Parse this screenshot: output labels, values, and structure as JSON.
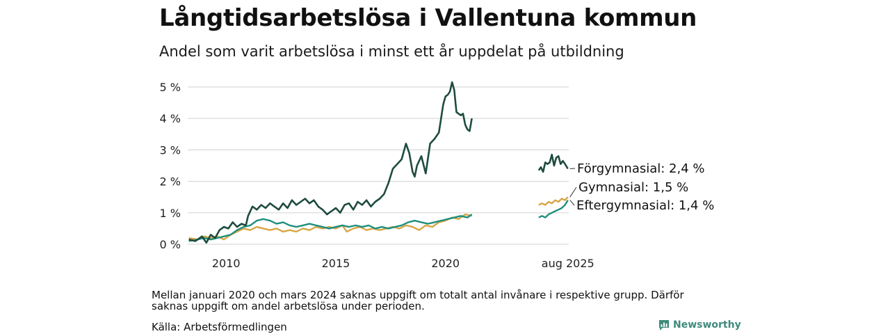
{
  "title": "Långtidsarbetslösa i Vallentuna kommun",
  "subtitle": "Andel som varit arbetslösa i minst ett år uppdelat på utbildning",
  "note": "Mellan januari 2020 och mars 2024 saknas uppgift om totalt antal invånare i respektive grupp. Därför saknas uppgift om andel arbetslösa under perioden.",
  "source": "Källa: Arbetsförmedlingen",
  "brand": "Newsworthy",
  "colors": {
    "forgymnasial": "#1e4b40",
    "gymnasial": "#d9a545",
    "eftergymnasial": "#1f8f7e",
    "grid": "#d9d9d9",
    "brand": "#3f8a7c"
  },
  "chart_data": {
    "type": "line",
    "ylim": [
      0,
      5.2
    ],
    "yticks": [
      0,
      1,
      2,
      3,
      4,
      5
    ],
    "ytick_labels": [
      "0 %",
      "1 %",
      "2 %",
      "3 %",
      "4 %",
      "5 %"
    ],
    "xlim": [
      2008.25,
      2025.62
    ],
    "xticks": [
      2010,
      2015,
      2020,
      2025.58
    ],
    "xtick_labels": [
      "2010",
      "2015",
      "2020",
      "aug 2025"
    ],
    "grid": true,
    "end_labels": [
      "Förgymnasial: 2,4 %",
      "Gymnasial: 1,5 %",
      "Eftergymnasial: 1,4 %"
    ],
    "series": [
      {
        "name": "Förgymnasial",
        "end_label": "Förgymnasial: 2,4 %",
        "segments": [
          [
            [
              2008.3,
              0.15
            ],
            [
              2008.6,
              0.1
            ],
            [
              2008.9,
              0.25
            ],
            [
              2009.1,
              0.05
            ],
            [
              2009.3,
              0.3
            ],
            [
              2009.5,
              0.2
            ],
            [
              2009.7,
              0.45
            ],
            [
              2009.9,
              0.55
            ],
            [
              2010.1,
              0.5
            ],
            [
              2010.3,
              0.7
            ],
            [
              2010.5,
              0.55
            ],
            [
              2010.7,
              0.65
            ],
            [
              2010.9,
              0.6
            ],
            [
              2011.0,
              0.9
            ],
            [
              2011.2,
              1.2
            ],
            [
              2011.4,
              1.1
            ],
            [
              2011.6,
              1.25
            ],
            [
              2011.8,
              1.15
            ],
            [
              2012.0,
              1.3
            ],
            [
              2012.2,
              1.2
            ],
            [
              2012.4,
              1.1
            ],
            [
              2012.6,
              1.3
            ],
            [
              2012.8,
              1.15
            ],
            [
              2013.0,
              1.4
            ],
            [
              2013.2,
              1.25
            ],
            [
              2013.4,
              1.35
            ],
            [
              2013.6,
              1.45
            ],
            [
              2013.8,
              1.3
            ],
            [
              2014.0,
              1.4
            ],
            [
              2014.2,
              1.2
            ],
            [
              2014.4,
              1.1
            ],
            [
              2014.6,
              0.95
            ],
            [
              2014.8,
              1.05
            ],
            [
              2015.0,
              1.15
            ],
            [
              2015.2,
              1.0
            ],
            [
              2015.4,
              1.25
            ],
            [
              2015.6,
              1.3
            ],
            [
              2015.8,
              1.1
            ],
            [
              2016.0,
              1.35
            ],
            [
              2016.2,
              1.25
            ],
            [
              2016.4,
              1.4
            ],
            [
              2016.6,
              1.2
            ],
            [
              2016.8,
              1.35
            ],
            [
              2017.0,
              1.45
            ],
            [
              2017.2,
              1.6
            ],
            [
              2017.4,
              1.95
            ],
            [
              2017.6,
              2.4
            ],
            [
              2017.8,
              2.55
            ],
            [
              2018.0,
              2.7
            ],
            [
              2018.2,
              3.2
            ],
            [
              2018.35,
              2.9
            ],
            [
              2018.5,
              2.3
            ],
            [
              2018.6,
              2.15
            ],
            [
              2018.7,
              2.5
            ],
            [
              2018.9,
              2.8
            ],
            [
              2019.1,
              2.25
            ],
            [
              2019.3,
              3.2
            ],
            [
              2019.5,
              3.35
            ],
            [
              2019.7,
              3.55
            ],
            [
              2019.9,
              4.45
            ],
            [
              2020.0,
              4.7
            ],
            [
              2020.1,
              4.75
            ],
            [
              2020.2,
              4.85
            ],
            [
              2020.3,
              5.15
            ],
            [
              2020.4,
              4.9
            ],
            [
              2020.5,
              4.2
            ],
            [
              2020.6,
              4.15
            ],
            [
              2020.7,
              4.1
            ],
            [
              2020.8,
              4.15
            ],
            [
              2020.9,
              3.8
            ],
            [
              2021.0,
              3.65
            ],
            [
              2021.1,
              3.6
            ],
            [
              2021.2,
              4.0
            ]
          ],
          [
            [
              2024.25,
              2.35
            ],
            [
              2024.35,
              2.45
            ],
            [
              2024.45,
              2.3
            ],
            [
              2024.55,
              2.6
            ],
            [
              2024.65,
              2.55
            ],
            [
              2024.75,
              2.6
            ],
            [
              2024.85,
              2.85
            ],
            [
              2024.95,
              2.5
            ],
            [
              2025.05,
              2.75
            ],
            [
              2025.15,
              2.8
            ],
            [
              2025.25,
              2.55
            ],
            [
              2025.35,
              2.65
            ],
            [
              2025.45,
              2.55
            ],
            [
              2025.58,
              2.4
            ]
          ]
        ]
      },
      {
        "name": "Gymnasial",
        "end_label": "Gymnasial: 1,5 %",
        "segments": [
          [
            [
              2008.3,
              0.2
            ],
            [
              2008.7,
              0.15
            ],
            [
              2009.0,
              0.25
            ],
            [
              2009.3,
              0.2
            ],
            [
              2009.6,
              0.25
            ],
            [
              2009.9,
              0.15
            ],
            [
              2010.2,
              0.3
            ],
            [
              2010.5,
              0.4
            ],
            [
              2010.8,
              0.5
            ],
            [
              2011.1,
              0.45
            ],
            [
              2011.4,
              0.55
            ],
            [
              2011.7,
              0.5
            ],
            [
              2012.0,
              0.45
            ],
            [
              2012.3,
              0.5
            ],
            [
              2012.6,
              0.4
            ],
            [
              2012.9,
              0.45
            ],
            [
              2013.2,
              0.4
            ],
            [
              2013.5,
              0.5
            ],
            [
              2013.8,
              0.45
            ],
            [
              2014.1,
              0.55
            ],
            [
              2014.4,
              0.5
            ],
            [
              2014.7,
              0.55
            ],
            [
              2015.0,
              0.5
            ],
            [
              2015.3,
              0.6
            ],
            [
              2015.5,
              0.4
            ],
            [
              2015.8,
              0.5
            ],
            [
              2016.1,
              0.55
            ],
            [
              2016.4,
              0.45
            ],
            [
              2016.7,
              0.5
            ],
            [
              2017.0,
              0.45
            ],
            [
              2017.3,
              0.5
            ],
            [
              2017.6,
              0.55
            ],
            [
              2017.9,
              0.5
            ],
            [
              2018.2,
              0.6
            ],
            [
              2018.5,
              0.55
            ],
            [
              2018.8,
              0.45
            ],
            [
              2019.1,
              0.6
            ],
            [
              2019.4,
              0.55
            ],
            [
              2019.7,
              0.7
            ],
            [
              2020.0,
              0.75
            ],
            [
              2020.3,
              0.85
            ],
            [
              2020.6,
              0.8
            ],
            [
              2020.9,
              0.95
            ],
            [
              2021.2,
              0.9
            ]
          ],
          [
            [
              2024.25,
              1.25
            ],
            [
              2024.4,
              1.3
            ],
            [
              2024.55,
              1.25
            ],
            [
              2024.7,
              1.35
            ],
            [
              2024.85,
              1.3
            ],
            [
              2025.0,
              1.4
            ],
            [
              2025.15,
              1.35
            ],
            [
              2025.3,
              1.45
            ],
            [
              2025.45,
              1.4
            ],
            [
              2025.58,
              1.5
            ]
          ]
        ]
      },
      {
        "name": "Eftergymnasial",
        "end_label": "Eftergymnasial: 1,4 %",
        "segments": [
          [
            [
              2008.3,
              0.1
            ],
            [
              2008.7,
              0.15
            ],
            [
              2009.0,
              0.2
            ],
            [
              2009.3,
              0.15
            ],
            [
              2009.6,
              0.2
            ],
            [
              2009.9,
              0.25
            ],
            [
              2010.2,
              0.3
            ],
            [
              2010.5,
              0.45
            ],
            [
              2010.8,
              0.55
            ],
            [
              2011.1,
              0.6
            ],
            [
              2011.4,
              0.75
            ],
            [
              2011.7,
              0.8
            ],
            [
              2012.0,
              0.75
            ],
            [
              2012.3,
              0.65
            ],
            [
              2012.6,
              0.7
            ],
            [
              2012.9,
              0.6
            ],
            [
              2013.2,
              0.55
            ],
            [
              2013.5,
              0.6
            ],
            [
              2013.8,
              0.65
            ],
            [
              2014.1,
              0.6
            ],
            [
              2014.4,
              0.55
            ],
            [
              2014.7,
              0.5
            ],
            [
              2015.0,
              0.55
            ],
            [
              2015.3,
              0.6
            ],
            [
              2015.6,
              0.55
            ],
            [
              2015.9,
              0.6
            ],
            [
              2016.2,
              0.55
            ],
            [
              2016.5,
              0.6
            ],
            [
              2016.8,
              0.5
            ],
            [
              2017.1,
              0.55
            ],
            [
              2017.4,
              0.5
            ],
            [
              2017.7,
              0.55
            ],
            [
              2018.0,
              0.6
            ],
            [
              2018.3,
              0.7
            ],
            [
              2018.6,
              0.75
            ],
            [
              2018.9,
              0.7
            ],
            [
              2019.2,
              0.65
            ],
            [
              2019.5,
              0.7
            ],
            [
              2019.8,
              0.75
            ],
            [
              2020.1,
              0.8
            ],
            [
              2020.4,
              0.85
            ],
            [
              2020.7,
              0.9
            ],
            [
              2021.0,
              0.85
            ],
            [
              2021.2,
              0.95
            ]
          ],
          [
            [
              2024.25,
              0.85
            ],
            [
              2024.4,
              0.9
            ],
            [
              2024.55,
              0.85
            ],
            [
              2024.7,
              0.95
            ],
            [
              2024.85,
              1.0
            ],
            [
              2025.0,
              1.05
            ],
            [
              2025.15,
              1.1
            ],
            [
              2025.3,
              1.15
            ],
            [
              2025.45,
              1.25
            ],
            [
              2025.58,
              1.4
            ]
          ]
        ]
      }
    ]
  }
}
